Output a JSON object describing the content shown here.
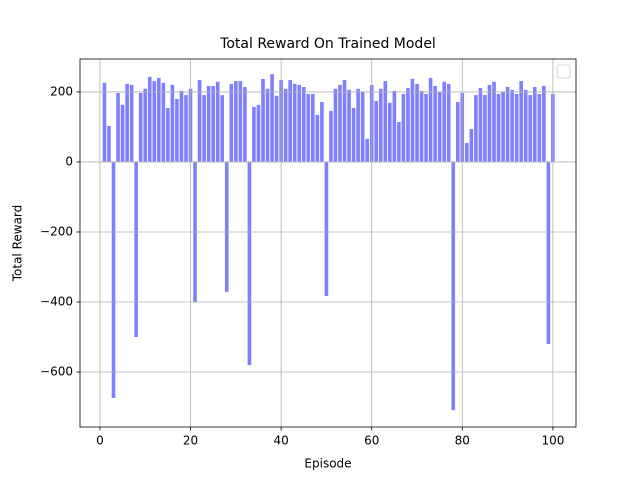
{
  "chart_data": {
    "type": "bar",
    "title": "Total Reward On Trained Model",
    "xlabel": "Episode",
    "ylabel": "Total Reward",
    "x": [
      1,
      2,
      3,
      4,
      5,
      6,
      7,
      8,
      9,
      10,
      11,
      12,
      13,
      14,
      15,
      16,
      17,
      18,
      19,
      20,
      21,
      22,
      23,
      24,
      25,
      26,
      27,
      28,
      29,
      30,
      31,
      32,
      33,
      34,
      35,
      36,
      37,
      38,
      39,
      40,
      41,
      42,
      43,
      44,
      45,
      46,
      47,
      48,
      49,
      50,
      51,
      52,
      53,
      54,
      55,
      56,
      57,
      58,
      59,
      60,
      61,
      62,
      63,
      64,
      65,
      66,
      67,
      68,
      69,
      70,
      71,
      72,
      73,
      74,
      75,
      76,
      77,
      78,
      79,
      80,
      81,
      82,
      83,
      84,
      85,
      86,
      87,
      88,
      89,
      90,
      91,
      92,
      93,
      94,
      95,
      96,
      97,
      98,
      99,
      100
    ],
    "values": [
      226,
      103,
      -674,
      197,
      163,
      223,
      220,
      -500,
      197,
      209,
      243,
      231,
      240,
      226,
      154,
      220,
      180,
      203,
      191,
      209,
      -400,
      234,
      191,
      217,
      217,
      229,
      191,
      -371,
      223,
      231,
      231,
      214,
      -580,
      157,
      163,
      237,
      209,
      251,
      189,
      234,
      209,
      234,
      223,
      220,
      214,
      194,
      194,
      134,
      171,
      -383,
      146,
      209,
      220,
      234,
      206,
      154,
      209,
      200,
      66,
      220,
      174,
      209,
      231,
      169,
      203,
      114,
      194,
      211,
      237,
      223,
      203,
      194,
      240,
      217,
      200,
      229,
      223,
      -709,
      171,
      197,
      54,
      94,
      191,
      211,
      191,
      220,
      229,
      194,
      200,
      214,
      206,
      194,
      231,
      206,
      191,
      214,
      194,
      217,
      -520,
      194
    ],
    "color": "#8080ff",
    "xlim": [
      -4.4,
      105.1
    ],
    "ylim": [
      -757,
      294
    ],
    "xticks": [
      0,
      20,
      40,
      60,
      80,
      100
    ],
    "yticks": [
      {
        "value": -600,
        "label": "−600"
      },
      {
        "value": -400,
        "label": "−400"
      },
      {
        "value": -200,
        "label": "−200"
      },
      0,
      200
    ],
    "grid": true
  }
}
